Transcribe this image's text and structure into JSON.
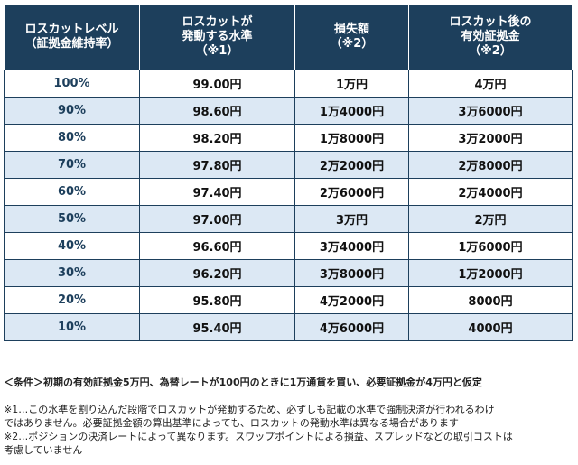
{
  "table": {
    "headers": [
      "ロスカットレベル\n（証拠金維持率）",
      "ロスカットが\n発動する水準\n（※1）",
      "損失額\n（※2）",
      "ロスカット後の\n有効証拠金\n（※2）"
    ],
    "rows": [
      [
        "100%",
        "99.00円",
        "1万円",
        "4万円"
      ],
      [
        "90%",
        "98.60円",
        "1万4000円",
        "3万6000円"
      ],
      [
        "80%",
        "98.20円",
        "1万8000円",
        "3万2000円"
      ],
      [
        "70%",
        "97.80円",
        "2万2000円",
        "2万8000円"
      ],
      [
        "60%",
        "97.40円",
        "2万6000円",
        "2万4000円"
      ],
      [
        "50%",
        "97.00円",
        "3万円",
        "2万円"
      ],
      [
        "40%",
        "96.60円",
        "3万4000円",
        "1万6000円"
      ],
      [
        "30%",
        "96.20円",
        "3万8000円",
        "1万2000円"
      ],
      [
        "20%",
        "95.80円",
        "4万2000円",
        "8000円"
      ],
      [
        "10%",
        "95.40円",
        "4万6000円",
        "4000円"
      ]
    ]
  },
  "conditions": "＜条件＞初期の有効証拠金5万円、為替レートが100円のときに1万通貨を買い、必要証拠金が4万円と仮定",
  "notes": [
    "※1…この水準を割り込んだ段階でロスカットが発動するため、必ずしも記載の水準で強制決済が行われるわけ",
    "ではありません。必要証拠金額の算出基準によっても、ロスカットの発動水準は異なる場合があります",
    "※2…ポジションの決済レートによって異なります。スワップポイントによる損益、スプレッドなどの取引コストは",
    "考慮していません"
  ],
  "colors": {
    "header_bg": "#1d3f5c",
    "row_alt_bg": "#dce8f4"
  }
}
